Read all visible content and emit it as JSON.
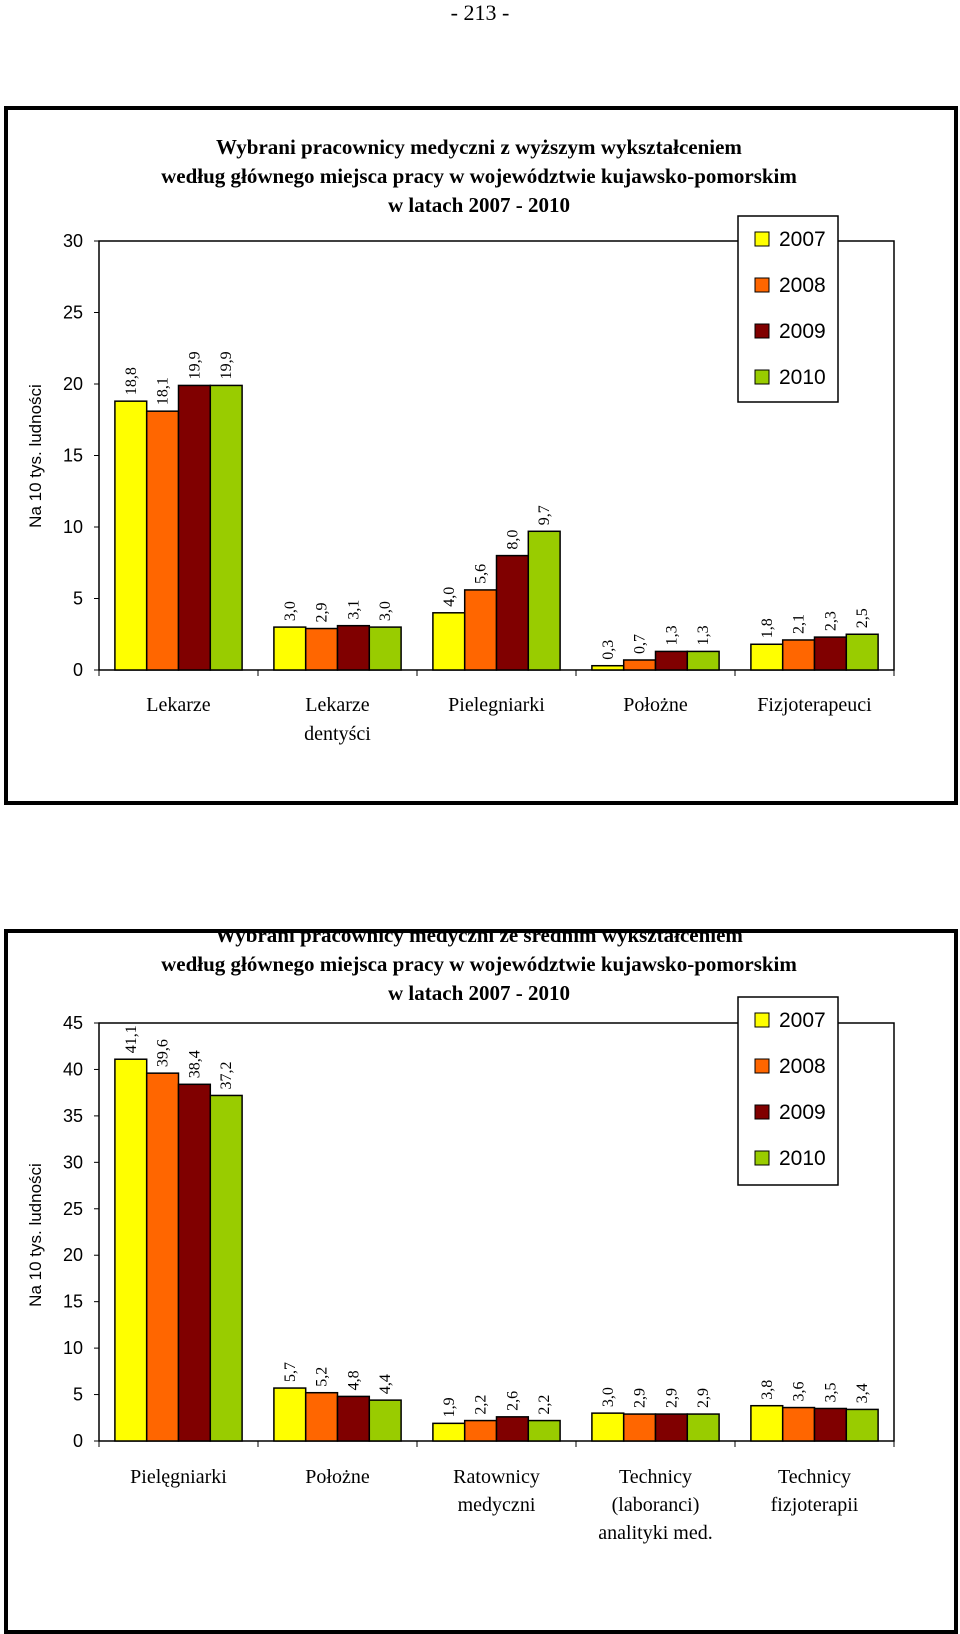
{
  "page_number": "- 213 -",
  "colors": {
    "2007": "#FFFF00",
    "2008": "#FF6600",
    "2009": "#800000",
    "2010": "#99CC00"
  },
  "chart_data": [
    {
      "type": "bar",
      "title": [
        "Wybrani pracownicy medyczni z wyższym wykształceniem",
        "według głównego miejsca pracy w województwie kujawsko-pomorskim",
        "w latach 2007 - 2010"
      ],
      "ylabel": "Na 10 tys. ludności",
      "ylim": [
        0,
        30
      ],
      "yticks": [
        0,
        5,
        10,
        15,
        20,
        25,
        30
      ],
      "categories": [
        [
          "Lekarze"
        ],
        [
          "Lekarze",
          "dentyści"
        ],
        [
          "Pielegniarki"
        ],
        [
          "Położne"
        ],
        [
          "Fizjoterapeuci"
        ]
      ],
      "series": [
        {
          "name": "2007",
          "values": [
            18.8,
            3.0,
            4.0,
            0.3,
            1.8
          ],
          "labels": [
            "18,8",
            "3,0",
            "4,0",
            "0,3",
            "1,8"
          ]
        },
        {
          "name": "2008",
          "values": [
            18.1,
            2.9,
            5.6,
            0.7,
            2.1
          ],
          "labels": [
            "18,1",
            "2,9",
            "5,6",
            "0,7",
            "2,1"
          ]
        },
        {
          "name": "2009",
          "values": [
            19.9,
            3.1,
            8.0,
            1.3,
            2.3
          ],
          "labels": [
            "19,9",
            "3,1",
            "8,0",
            "1,3",
            "2,3"
          ]
        },
        {
          "name": "2010",
          "values": [
            19.9,
            3.0,
            9.7,
            1.3,
            2.5
          ],
          "labels": [
            "19,9",
            "3,0",
            "9,7",
            "1,3",
            "2,5"
          ]
        }
      ],
      "legend": "top-right",
      "grid": false
    },
    {
      "type": "bar",
      "title": [
        "Wybrani pracownicy medyczni ze średnim wykształceniem",
        "według głównego miejsca pracy w województwie kujawsko-pomorskim",
        "w latach 2007 - 2010"
      ],
      "ylabel": "Na 10 tys. ludności",
      "ylim": [
        0,
        45
      ],
      "yticks": [
        0,
        5,
        10,
        15,
        20,
        25,
        30,
        35,
        40,
        45
      ],
      "categories": [
        [
          "Pielęgniarki"
        ],
        [
          "Położne"
        ],
        [
          "Ratownicy",
          "medyczni"
        ],
        [
          "Technicy",
          "(laboranci)",
          "analityki med."
        ],
        [
          "Technicy",
          "fizjoterapii"
        ]
      ],
      "series": [
        {
          "name": "2007",
          "values": [
            41.1,
            5.7,
            1.9,
            3.0,
            3.8
          ],
          "labels": [
            "41,1",
            "5,7",
            "1,9",
            "3,0",
            "3,8"
          ]
        },
        {
          "name": "2008",
          "values": [
            39.6,
            5.2,
            2.2,
            2.9,
            3.6
          ],
          "labels": [
            "39,6",
            "5,2",
            "2,2",
            "2,9",
            "3,6"
          ]
        },
        {
          "name": "2009",
          "values": [
            38.4,
            4.8,
            2.6,
            2.9,
            3.5
          ],
          "labels": [
            "38,4",
            "4,8",
            "2,6",
            "2,9",
            "3,5"
          ]
        },
        {
          "name": "2010",
          "values": [
            37.2,
            4.4,
            2.2,
            2.9,
            3.4
          ],
          "labels": [
            "37,2",
            "4,4",
            "2,2",
            "2,9",
            "3,4"
          ]
        }
      ],
      "legend": "top-right",
      "grid": false
    }
  ]
}
